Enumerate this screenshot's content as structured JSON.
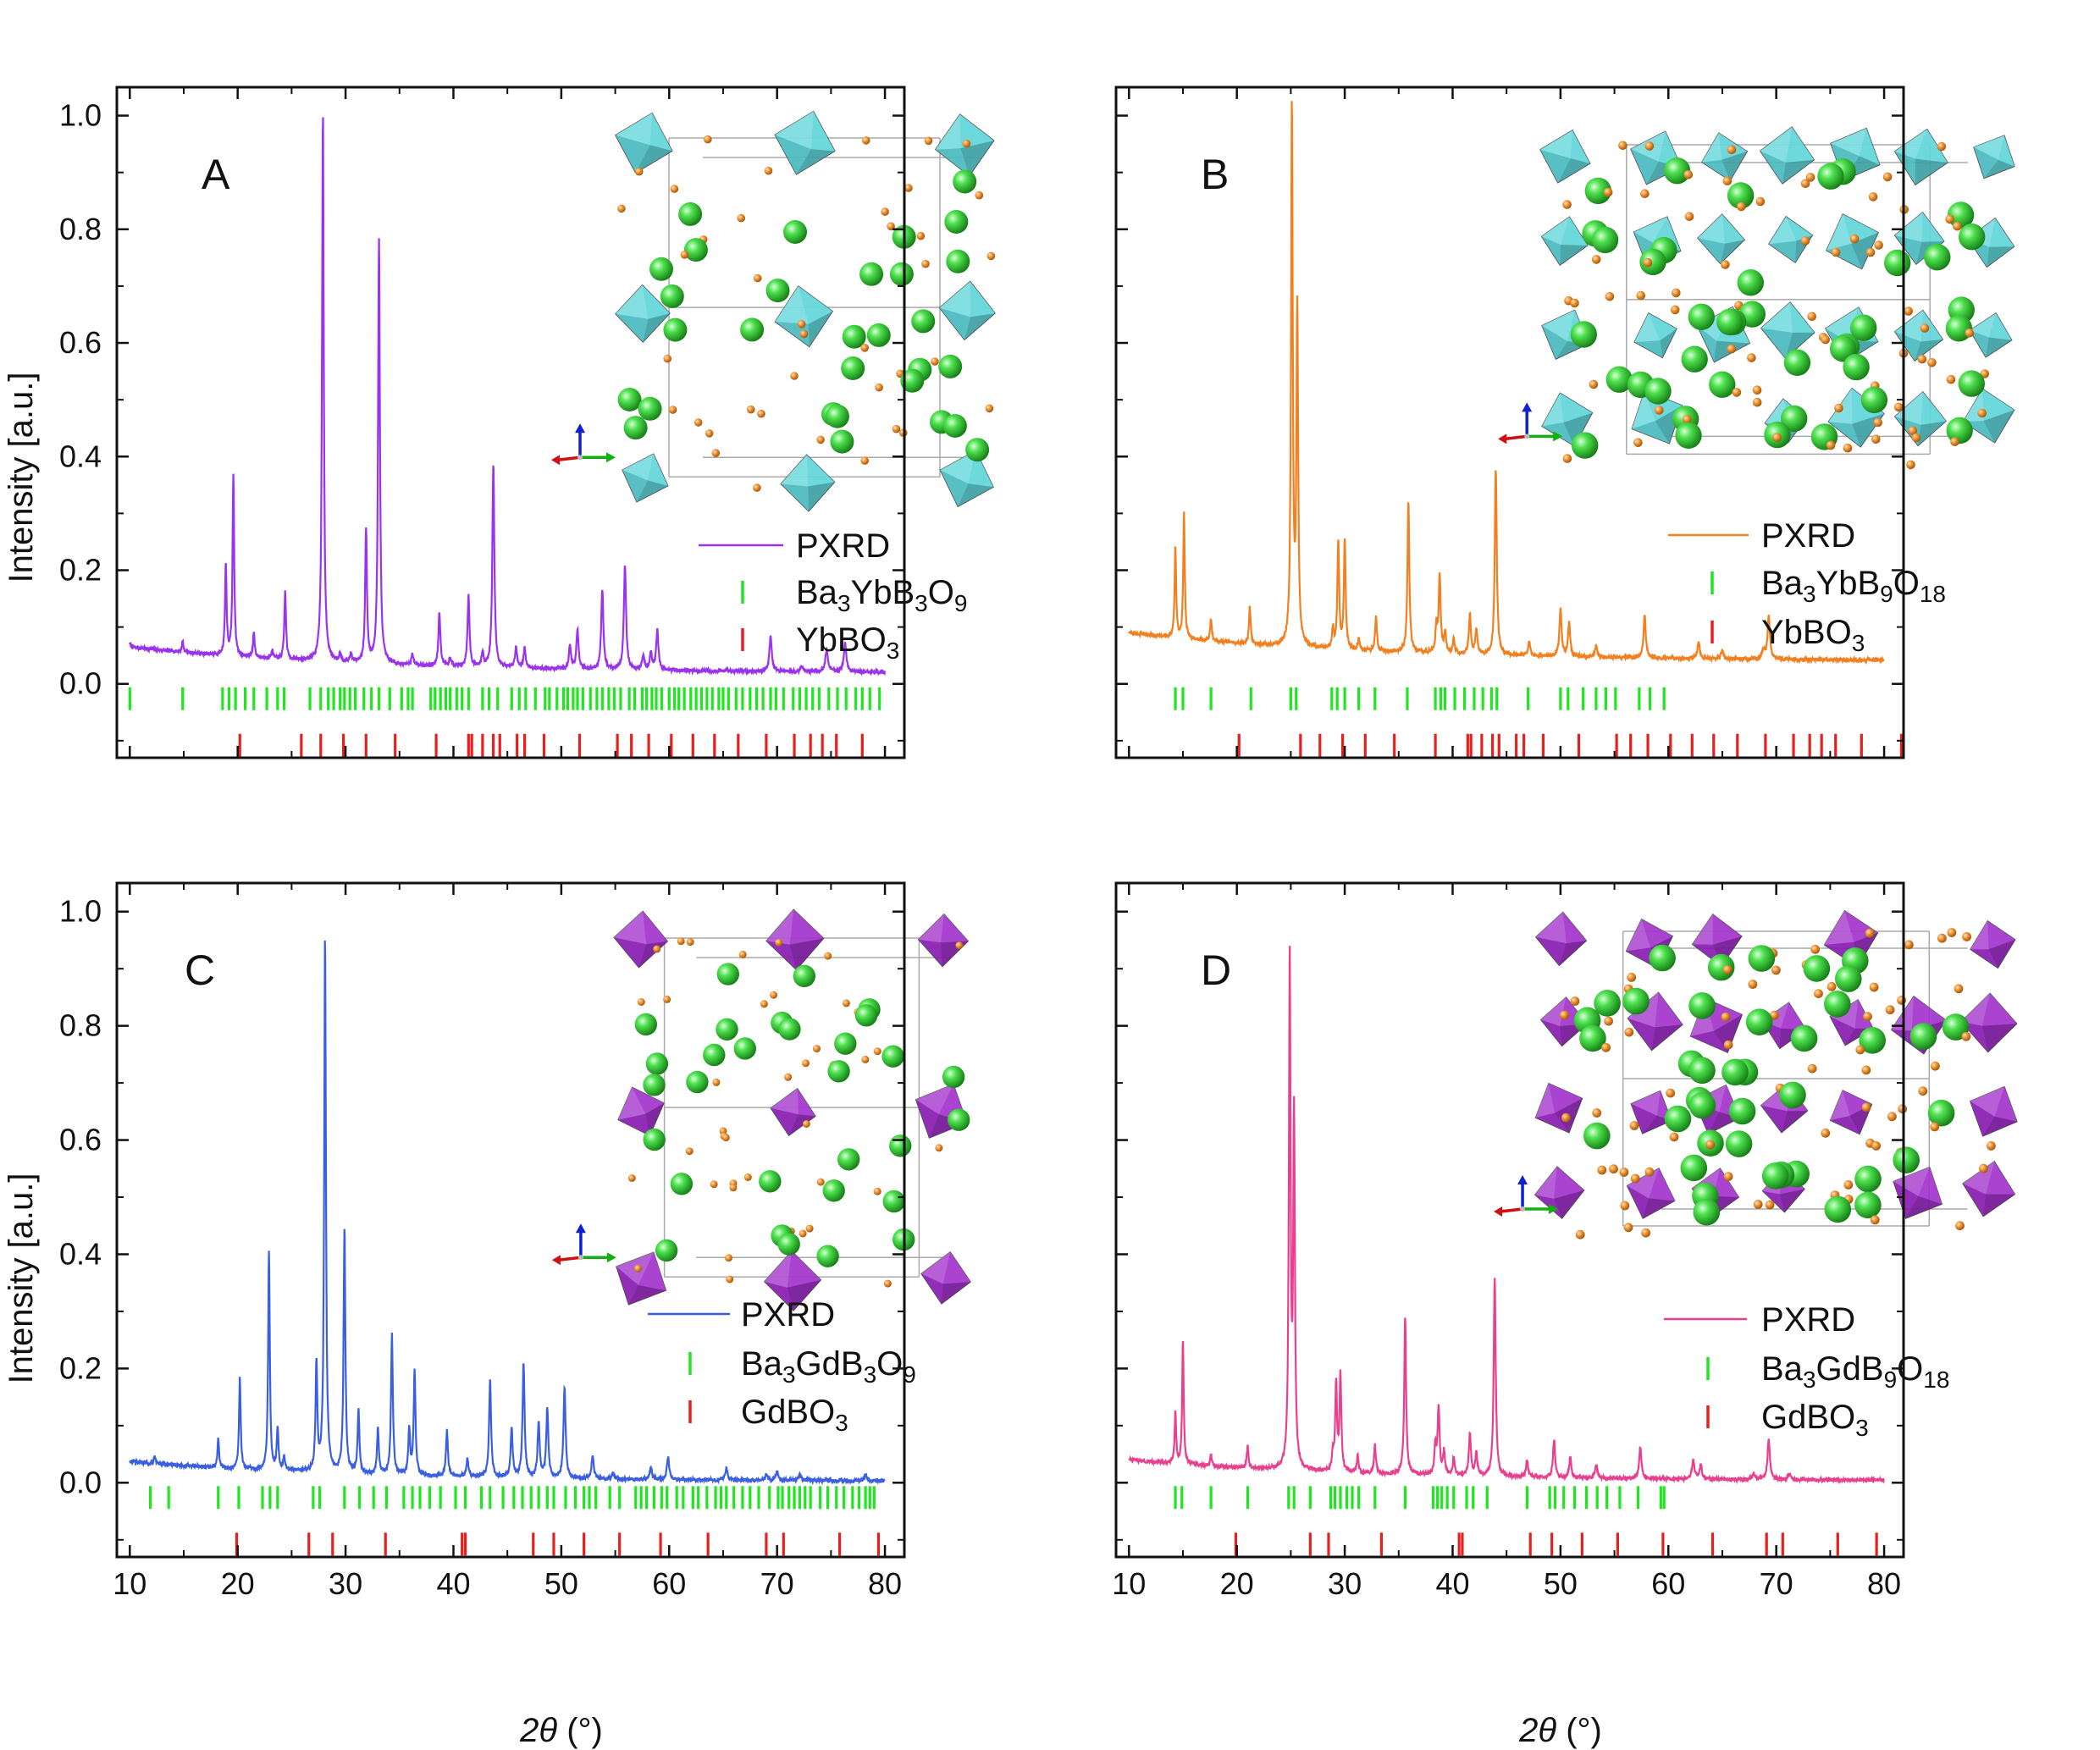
{
  "figure": {
    "xlabel_symbol": "2θ",
    "xlabel_unit": "(°)",
    "ylabel": "Intensity [a.u.]",
    "x_ticks": [
      "10",
      "20",
      "30",
      "40",
      "50",
      "60",
      "70",
      "80"
    ],
    "y_ticks": [
      "1.0",
      "0.8",
      "0.6",
      "0.4",
      "0.2",
      "0.0"
    ],
    "colors": {
      "main_phase": "#1fe61f",
      "impurity_phase": "#e61f1f",
      "octa_yb": "#55d2d8",
      "octa_gd": "#9a22c8",
      "atom_ba": "#2fc72f",
      "atom_o": "#e0871e"
    }
  },
  "chart_data": [
    {
      "id": "A",
      "label": "A",
      "type": "line",
      "color": "#9933ee",
      "xlabel": "2θ (°)",
      "ylabel": "Intensity [a.u.]",
      "xlim": [
        8.8,
        81.8
      ],
      "ylim": [
        -0.13,
        1.05
      ],
      "legend": {
        "line": "PXRD",
        "main": "Ba3YbB3O9",
        "impurity": "YbBO3",
        "placement": "right"
      },
      "baseline": [
        0.065,
        0.019
      ],
      "peaks": [
        [
          10.0,
          0.006
        ],
        [
          14.9,
          0.02
        ],
        [
          18.9,
          0.16
        ],
        [
          19.6,
          0.32
        ],
        [
          21.5,
          0.045
        ],
        [
          23.2,
          0.015
        ],
        [
          24.4,
          0.12
        ],
        [
          27.9,
          0.97
        ],
        [
          29.5,
          0.015
        ],
        [
          30.5,
          0.015
        ],
        [
          31.9,
          0.235
        ],
        [
          33.1,
          0.75
        ],
        [
          36.2,
          0.02
        ],
        [
          38.7,
          0.095
        ],
        [
          39.7,
          0.015
        ],
        [
          41.4,
          0.125
        ],
        [
          42.7,
          0.025
        ],
        [
          43.7,
          0.36
        ],
        [
          45.8,
          0.035
        ],
        [
          46.6,
          0.035
        ],
        [
          50.8,
          0.04
        ],
        [
          51.5,
          0.07
        ],
        [
          53.8,
          0.14
        ],
        [
          55.9,
          0.185
        ],
        [
          57.6,
          0.025
        ],
        [
          58.3,
          0.03
        ],
        [
          58.9,
          0.07
        ],
        [
          69.4,
          0.06
        ],
        [
          72.3,
          0.01
        ],
        [
          74.6,
          0.04
        ],
        [
          76.3,
          0.05
        ]
      ],
      "ticks_main": [
        10.0,
        14.9,
        18.6,
        19.2,
        19.8,
        20.7,
        21.5,
        22.7,
        23.7,
        24.3,
        26.7,
        27.7,
        28.4,
        28.9,
        29.5,
        29.9,
        30.4,
        30.9,
        31.7,
        32.4,
        33.1,
        34.1,
        35.2,
        35.8,
        36.2,
        37.9,
        38.3,
        38.8,
        39.3,
        39.7,
        40.3,
        40.8,
        41.4,
        42.7,
        43.3,
        44.1,
        45.4,
        46.1,
        46.7,
        47.6,
        48.5,
        48.9,
        49.6,
        50.2,
        50.6,
        51.1,
        51.5,
        52.0,
        52.7,
        53.3,
        53.8,
        54.4,
        54.9,
        55.5,
        56.3,
        56.8,
        57.5,
        57.9,
        58.4,
        58.8,
        59.3,
        60.0,
        60.5,
        60.9,
        61.4,
        62.0,
        62.5,
        63.0,
        63.5,
        64.0,
        64.6,
        65.0,
        65.5,
        66.2,
        66.8,
        67.5,
        68.1,
        68.7,
        69.4,
        69.9,
        70.6,
        71.5,
        72.1,
        72.7,
        73.3,
        73.9,
        74.8,
        75.6,
        76.4,
        77.3,
        77.9,
        78.6,
        79.5
      ],
      "ticks_impurity": [
        20.2,
        25.9,
        27.7,
        29.8,
        31.9,
        34.6,
        38.4,
        41.4,
        41.7,
        42.7,
        43.7,
        44.3,
        45.9,
        46.6,
        48.4,
        51.7,
        55.2,
        56.5,
        58.1,
        60.2,
        62.2,
        64.2,
        66.4,
        69.0,
        71.6,
        73.1,
        74.2,
        75.5,
        77.9
      ]
    },
    {
      "id": "B",
      "label": "B",
      "type": "line",
      "color": "#f08020",
      "xlabel": "2θ (°)",
      "ylabel": "Intensity [a.u.]",
      "xlim": [
        8.8,
        81.8
      ],
      "ylim": [
        -0.13,
        1.05
      ],
      "legend": {
        "line": "PXRD",
        "main": "Ba3YbB9O18",
        "impurity": "YbBO3",
        "placement": "right"
      },
      "baseline": [
        0.09,
        0.04
      ],
      "peaks": [
        [
          14.3,
          0.16
        ],
        [
          15.1,
          0.22
        ],
        [
          17.6,
          0.04
        ],
        [
          21.2,
          0.065
        ],
        [
          25.1,
          0.95
        ],
        [
          25.6,
          0.59
        ],
        [
          28.9,
          0.035
        ],
        [
          29.4,
          0.19
        ],
        [
          30.0,
          0.19
        ],
        [
          31.3,
          0.02
        ],
        [
          32.9,
          0.06
        ],
        [
          35.9,
          0.265
        ],
        [
          38.5,
          0.045
        ],
        [
          38.8,
          0.135
        ],
        [
          39.3,
          0.035
        ],
        [
          40.1,
          0.025
        ],
        [
          41.6,
          0.07
        ],
        [
          42.2,
          0.045
        ],
        [
          44.0,
          0.33
        ],
        [
          47.1,
          0.025
        ],
        [
          50.0,
          0.085
        ],
        [
          50.8,
          0.06
        ],
        [
          53.3,
          0.02
        ],
        [
          57.8,
          0.075
        ],
        [
          62.8,
          0.03
        ],
        [
          65.0,
          0.015
        ],
        [
          68.8,
          0.015
        ],
        [
          69.3,
          0.075
        ]
      ],
      "ticks_main": [
        14.3,
        15.0,
        17.6,
        21.3,
        25.0,
        25.5,
        28.8,
        29.3,
        30.0,
        31.3,
        32.8,
        35.8,
        38.4,
        38.9,
        39.3,
        40.2,
        41.1,
        42.0,
        42.8,
        43.6,
        44.1,
        47.0,
        50.0,
        50.7,
        52.1,
        53.3,
        54.2,
        55.1,
        57.3,
        58.3,
        59.6
      ],
      "ticks_impurity": [
        20.2,
        25.9,
        27.7,
        29.8,
        31.9,
        34.6,
        38.4,
        41.4,
        41.7,
        42.7,
        43.7,
        44.3,
        45.9,
        46.6,
        48.4,
        51.7,
        55.2,
        56.5,
        58.1,
        60.2,
        62.2,
        64.2,
        66.4,
        69.0,
        71.6,
        73.1,
        74.2,
        75.5,
        77.9,
        81.6
      ]
    },
    {
      "id": "C",
      "label": "C",
      "type": "line",
      "color": "#3a5fe0",
      "xlabel": "2θ (°)",
      "ylabel": "Intensity [a.u.]",
      "xlim": [
        8.8,
        81.8
      ],
      "ylim": [
        -0.13,
        1.05
      ],
      "legend": {
        "line": "PXRD",
        "main": "Ba3GdB3O9",
        "impurity": "GdBO3",
        "placement": "right"
      },
      "baseline": [
        0.037,
        0.002
      ],
      "peaks": [
        [
          12.3,
          0.015
        ],
        [
          18.2,
          0.05
        ],
        [
          20.2,
          0.16
        ],
        [
          22.9,
          0.385
        ],
        [
          23.7,
          0.075
        ],
        [
          24.3,
          0.025
        ],
        [
          27.3,
          0.19
        ],
        [
          28.1,
          0.935
        ],
        [
          29.9,
          0.43
        ],
        [
          31.2,
          0.11
        ],
        [
          33.0,
          0.08
        ],
        [
          34.3,
          0.245
        ],
        [
          35.9,
          0.08
        ],
        [
          36.4,
          0.18
        ],
        [
          39.4,
          0.08
        ],
        [
          41.3,
          0.03
        ],
        [
          43.4,
          0.17
        ],
        [
          45.4,
          0.085
        ],
        [
          46.5,
          0.2
        ],
        [
          47.9,
          0.095
        ],
        [
          48.7,
          0.12
        ],
        [
          50.3,
          0.16
        ],
        [
          52.9,
          0.04
        ],
        [
          54.8,
          0.01
        ],
        [
          58.3,
          0.02
        ],
        [
          59.9,
          0.04
        ],
        [
          65.3,
          0.02
        ],
        [
          69.0,
          0.01
        ],
        [
          70.0,
          0.015
        ],
        [
          72.1,
          0.01
        ],
        [
          78.2,
          0.01
        ]
      ],
      "ticks_main": [
        11.9,
        13.6,
        18.2,
        20.1,
        22.3,
        23.0,
        23.7,
        27.0,
        27.6,
        29.9,
        31.3,
        32.6,
        33.8,
        35.4,
        36.2,
        36.9,
        37.8,
        38.8,
        40.2,
        41.1,
        42.6,
        43.4,
        44.6,
        45.6,
        46.4,
        47.2,
        47.9,
        48.7,
        49.3,
        50.4,
        51.3,
        52.1,
        52.6,
        53.2,
        54.5,
        55.4,
        56.9,
        57.4,
        57.9,
        58.6,
        59.3,
        59.8,
        60.7,
        61.3,
        62.2,
        62.7,
        63.5,
        64.3,
        64.8,
        65.3,
        66.0,
        66.8,
        67.5,
        68.3,
        69.3,
        70.1,
        70.5,
        71.1,
        71.6,
        72.1,
        72.6,
        73.1,
        74.0,
        74.7,
        75.5,
        76.2,
        77.0,
        77.6,
        78.2,
        78.6,
        79.0
      ],
      "ticks_impurity": [
        19.9,
        26.6,
        28.8,
        33.7,
        40.8,
        41.1,
        47.4,
        49.3,
        52.1,
        55.4,
        59.2,
        63.6,
        69.0,
        70.6,
        75.8,
        79.4
      ]
    },
    {
      "id": "D",
      "label": "D",
      "type": "line",
      "color": "#e8408f",
      "xlabel": "2θ (°)",
      "ylabel": "Intensity [a.u.]",
      "xlim": [
        8.8,
        81.8
      ],
      "ylim": [
        -0.13,
        1.05
      ],
      "legend": {
        "line": "PXRD",
        "main": "Ba3GdB9O18",
        "impurity": "GdBO3",
        "placement": "right"
      },
      "baseline": [
        0.04,
        0.003
      ],
      "peaks": [
        [
          14.3,
          0.09
        ],
        [
          15.0,
          0.215
        ],
        [
          17.6,
          0.02
        ],
        [
          21.0,
          0.04
        ],
        [
          24.9,
          0.895
        ],
        [
          25.3,
          0.61
        ],
        [
          28.9,
          0.03
        ],
        [
          29.2,
          0.155
        ],
        [
          29.6,
          0.17
        ],
        [
          31.2,
          0.03
        ],
        [
          32.8,
          0.05
        ],
        [
          35.6,
          0.275
        ],
        [
          38.4,
          0.05
        ],
        [
          38.7,
          0.12
        ],
        [
          39.2,
          0.04
        ],
        [
          40.1,
          0.03
        ],
        [
          41.6,
          0.075
        ],
        [
          42.2,
          0.04
        ],
        [
          43.9,
          0.35
        ],
        [
          46.9,
          0.03
        ],
        [
          49.4,
          0.065
        ],
        [
          50.9,
          0.035
        ],
        [
          53.3,
          0.025
        ],
        [
          57.4,
          0.055
        ],
        [
          62.3,
          0.035
        ],
        [
          63.0,
          0.025
        ],
        [
          67.9,
          0.01
        ],
        [
          69.3,
          0.07
        ],
        [
          71.2,
          0.01
        ]
      ],
      "ticks_main": [
        14.3,
        14.9,
        17.6,
        21.0,
        24.8,
        25.3,
        26.8,
        28.7,
        29.1,
        29.6,
        30.2,
        30.7,
        31.3,
        32.8,
        35.6,
        38.2,
        38.6,
        39.0,
        39.5,
        40.1,
        41.3,
        41.9,
        43.2,
        46.9,
        49.0,
        49.5,
        50.3,
        51.3,
        52.4,
        53.4,
        54.3,
        55.5,
        57.2,
        59.3,
        59.6
      ],
      "ticks_impurity": [
        19.9,
        26.8,
        28.5,
        33.4,
        40.6,
        40.9,
        47.2,
        49.2,
        52.0,
        55.3,
        59.5,
        64.1,
        69.1,
        70.6,
        75.7,
        79.3
      ]
    }
  ]
}
